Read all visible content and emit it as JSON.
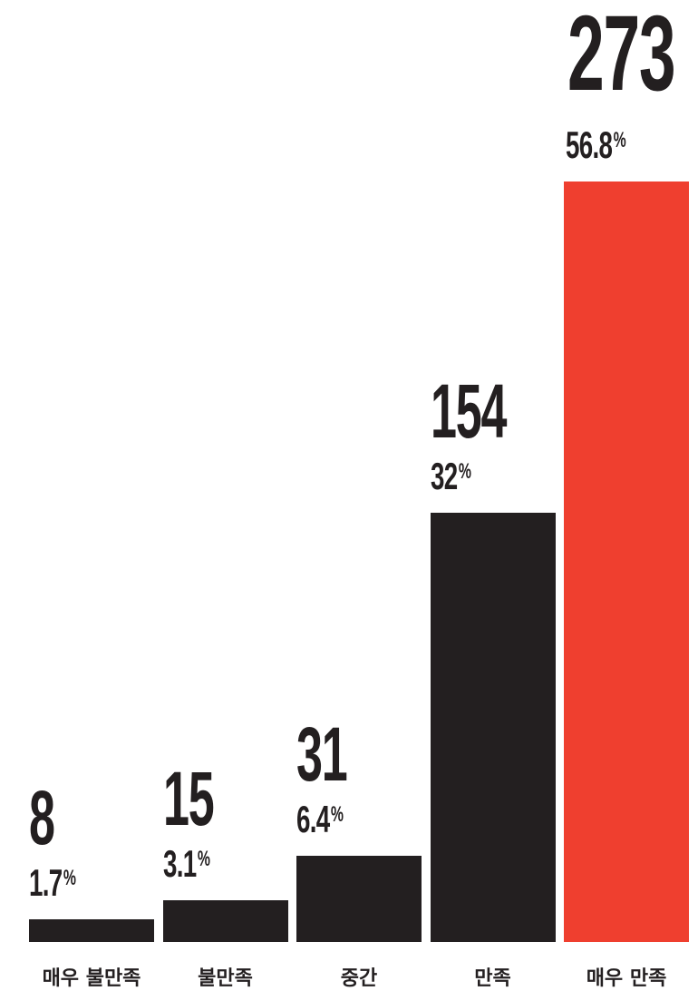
{
  "chart_data": {
    "type": "bar",
    "title": "",
    "categories": [
      "매우 불만족",
      "불만족",
      "중간",
      "만족",
      "매우 만족"
    ],
    "values": [
      8,
      15,
      31,
      154,
      273
    ],
    "percent_labels": [
      "1.7",
      "3.1",
      "6.4",
      "32",
      "56.8"
    ],
    "percent_sign": "%",
    "ylim": [
      0,
      273
    ],
    "grid": false,
    "colors": [
      "#231f20",
      "#231f20",
      "#231f20",
      "#231f20",
      "#ef3f2f"
    ]
  }
}
